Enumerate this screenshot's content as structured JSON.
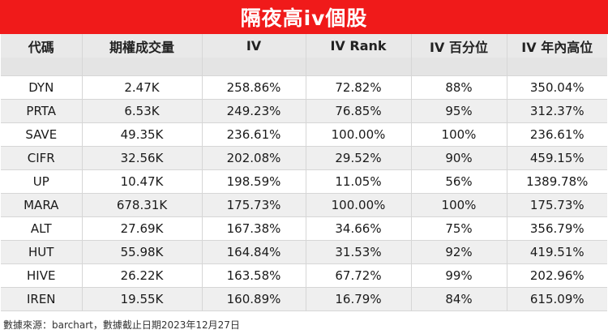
{
  "title": "隔夜高iv個股",
  "columns": [
    "代碼",
    "期權成交量",
    "IV",
    "IV Rank",
    "IV 百分位",
    "IV 年內高位"
  ],
  "rows": [
    [
      "DYN",
      "2.47K",
      "258.86%",
      "72.82%",
      "88%",
      "350.04%"
    ],
    [
      "PRTA",
      "6.53K",
      "249.23%",
      "76.85%",
      "95%",
      "312.37%"
    ],
    [
      "SAVE",
      "49.35K",
      "236.61%",
      "100.00%",
      "100%",
      "236.61%"
    ],
    [
      "CIFR",
      "32.56K",
      "202.08%",
      "29.52%",
      "90%",
      "459.15%"
    ],
    [
      "UP",
      "10.47K",
      "198.59%",
      "11.05%",
      "56%",
      "1389.78%"
    ],
    [
      "MARA",
      "678.31K",
      "175.73%",
      "100.00%",
      "100%",
      "175.73%"
    ],
    [
      "ALT",
      "27.69K",
      "167.38%",
      "34.66%",
      "75%",
      "356.79%"
    ],
    [
      "HUT",
      "55.98K",
      "164.84%",
      "31.53%",
      "92%",
      "419.51%"
    ],
    [
      "HIVE",
      "26.22K",
      "163.58%",
      "67.72%",
      "99%",
      "202.96%"
    ],
    [
      "IREN",
      "19.55K",
      "160.89%",
      "16.79%",
      "84%",
      "615.09%"
    ]
  ],
  "footer": "數據來源：barchart，數據截止日期2023年12月27日",
  "colors": {
    "title_bg": "#f01a1a",
    "title_text": "#ffffff",
    "header_bg": "#e9e9e9",
    "alt_row_bg": "#efefef"
  }
}
